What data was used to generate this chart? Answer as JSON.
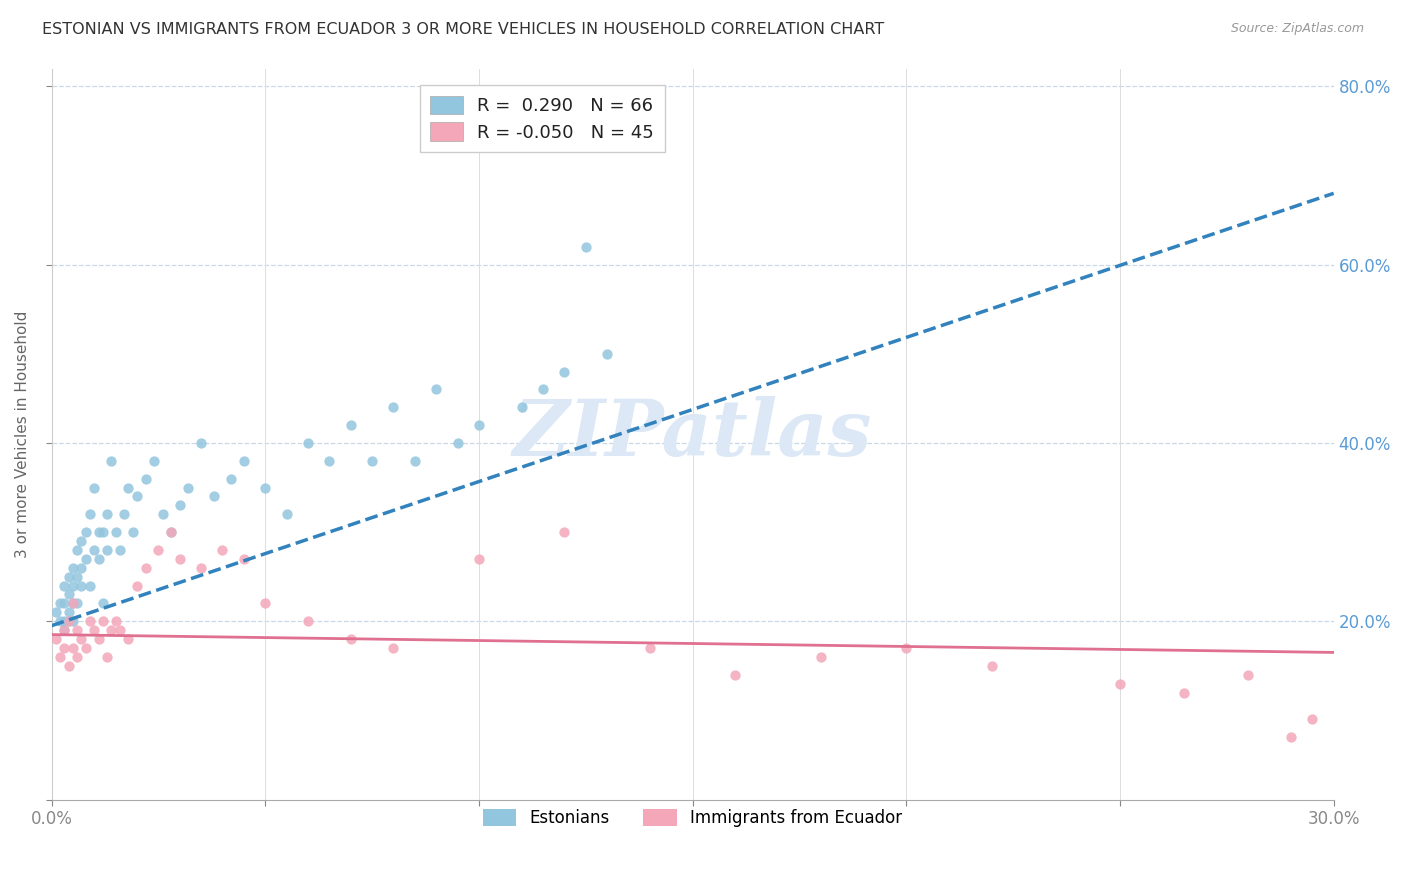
{
  "title": "ESTONIAN VS IMMIGRANTS FROM ECUADOR 3 OR MORE VEHICLES IN HOUSEHOLD CORRELATION CHART",
  "source": "Source: ZipAtlas.com",
  "ylabel": "3 or more Vehicles in Household",
  "right_yticks": [
    0.0,
    0.2,
    0.4,
    0.6,
    0.8
  ],
  "right_yticklabels": [
    "",
    "20.0%",
    "40.0%",
    "60.0%",
    "80.0%"
  ],
  "legend_blue_r": "R =  0.290",
  "legend_blue_n": "N = 66",
  "legend_pink_r": "R = -0.050",
  "legend_pink_n": "N = 45",
  "blue_color": "#92c5de",
  "pink_color": "#f4a7b9",
  "blue_line_color": "#3182bd",
  "pink_line_color": "#e07090",
  "watermark_color": "#dce8f5",
  "watermark": "ZIPatlas",
  "blue_scatter_x": [
    0.001,
    0.002,
    0.002,
    0.003,
    0.003,
    0.003,
    0.003,
    0.004,
    0.004,
    0.004,
    0.004,
    0.005,
    0.005,
    0.005,
    0.005,
    0.006,
    0.006,
    0.006,
    0.007,
    0.007,
    0.007,
    0.008,
    0.008,
    0.009,
    0.009,
    0.01,
    0.01,
    0.011,
    0.011,
    0.012,
    0.012,
    0.013,
    0.013,
    0.014,
    0.015,
    0.016,
    0.017,
    0.018,
    0.019,
    0.02,
    0.022,
    0.024,
    0.026,
    0.028,
    0.03,
    0.032,
    0.035,
    0.038,
    0.042,
    0.045,
    0.05,
    0.055,
    0.06,
    0.065,
    0.07,
    0.075,
    0.08,
    0.085,
    0.09,
    0.095,
    0.1,
    0.11,
    0.115,
    0.12,
    0.125,
    0.13
  ],
  "blue_scatter_y": [
    0.21,
    0.2,
    0.22,
    0.2,
    0.22,
    0.24,
    0.19,
    0.21,
    0.23,
    0.25,
    0.2,
    0.22,
    0.24,
    0.26,
    0.2,
    0.25,
    0.22,
    0.28,
    0.24,
    0.26,
    0.29,
    0.27,
    0.3,
    0.24,
    0.32,
    0.28,
    0.35,
    0.3,
    0.27,
    0.22,
    0.3,
    0.32,
    0.28,
    0.38,
    0.3,
    0.28,
    0.32,
    0.35,
    0.3,
    0.34,
    0.36,
    0.38,
    0.32,
    0.3,
    0.33,
    0.35,
    0.4,
    0.34,
    0.36,
    0.38,
    0.35,
    0.32,
    0.4,
    0.38,
    0.42,
    0.38,
    0.44,
    0.38,
    0.46,
    0.4,
    0.42,
    0.44,
    0.46,
    0.48,
    0.62,
    0.5
  ],
  "pink_scatter_x": [
    0.001,
    0.002,
    0.003,
    0.003,
    0.004,
    0.004,
    0.005,
    0.005,
    0.006,
    0.006,
    0.007,
    0.008,
    0.009,
    0.01,
    0.011,
    0.012,
    0.013,
    0.014,
    0.015,
    0.016,
    0.018,
    0.02,
    0.022,
    0.025,
    0.028,
    0.03,
    0.035,
    0.04,
    0.045,
    0.05,
    0.06,
    0.07,
    0.08,
    0.1,
    0.12,
    0.14,
    0.16,
    0.18,
    0.2,
    0.22,
    0.25,
    0.265,
    0.28,
    0.29,
    0.295
  ],
  "pink_scatter_y": [
    0.18,
    0.16,
    0.19,
    0.17,
    0.2,
    0.15,
    0.17,
    0.22,
    0.19,
    0.16,
    0.18,
    0.17,
    0.2,
    0.19,
    0.18,
    0.2,
    0.16,
    0.19,
    0.2,
    0.19,
    0.18,
    0.24,
    0.26,
    0.28,
    0.3,
    0.27,
    0.26,
    0.28,
    0.27,
    0.22,
    0.2,
    0.18,
    0.17,
    0.27,
    0.3,
    0.17,
    0.14,
    0.16,
    0.17,
    0.15,
    0.13,
    0.12,
    0.14,
    0.07,
    0.09
  ],
  "xmin": 0.0,
  "xmax": 0.3,
  "ymin": 0.0,
  "ymax": 0.82,
  "xticks": [
    0.0,
    0.05,
    0.1,
    0.15,
    0.2,
    0.25,
    0.3
  ],
  "xticklabels": [
    "0.0%",
    "",
    "",
    "",
    "",
    "",
    "30.0%"
  ],
  "blue_trend": [
    0.0,
    0.195,
    0.3,
    0.68
  ],
  "pink_trend": [
    0.0,
    0.185,
    0.3,
    0.165
  ],
  "grid_yticks": [
    0.2,
    0.4,
    0.6,
    0.8
  ],
  "grid_xticks": [
    0.05,
    0.1,
    0.15,
    0.2,
    0.25
  ]
}
